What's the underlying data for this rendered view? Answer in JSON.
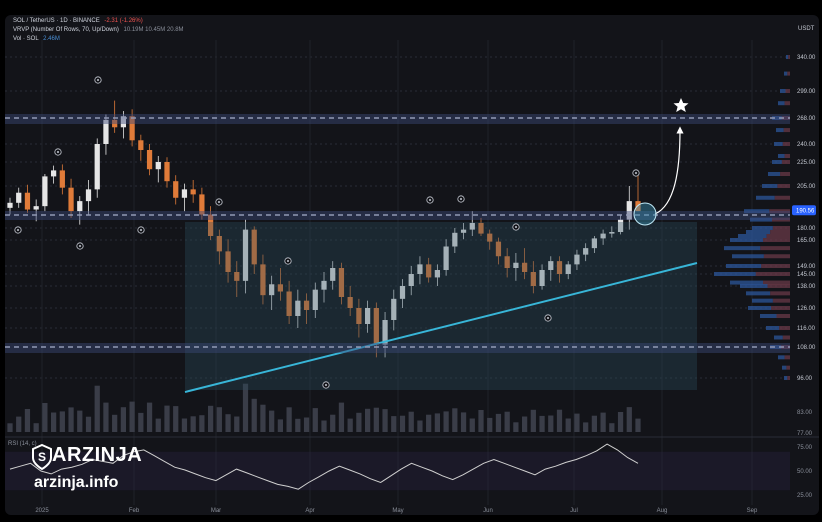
{
  "header": {
    "symbol_line": "SOL / TetherUS · 1D · BINANCE",
    "symbol_change": "-2.31 (-1.26%)",
    "indicator_vrvp": "VRVP (Number Of Rows, 70, Up/Down)",
    "indicator_vrvp_values": "10.19M  10.45M  20.8M",
    "indicator_vol": "Vol · SOL",
    "indicator_vol_value": "2.46M"
  },
  "brand": {
    "name": "ARZINJA",
    "url": "arzinja.info"
  },
  "chart_data": {
    "type": "candlestick",
    "currency": "USDT",
    "y_ticks": [
      340.0,
      299.0,
      268.0,
      240.0,
      225.0,
      205.0,
      180.0,
      165.0,
      149.0,
      145.0,
      138.0,
      126.0,
      116.0,
      108.0,
      96.0
    ],
    "current_price": 190.56,
    "x_ticks": [
      "2025",
      "Feb",
      "Mar",
      "Apr",
      "May",
      "Jun",
      "Jul",
      "Aug",
      "Sep"
    ],
    "rsi": {
      "label": "RSI (14, c)",
      "y_ticks": [
        75.0,
        50.0,
        25.0
      ],
      "values": [
        52,
        55,
        58,
        50,
        47,
        52,
        54,
        57,
        62,
        60,
        58,
        66,
        70,
        72,
        66,
        60,
        54,
        51,
        47,
        43,
        40,
        46,
        52,
        48,
        44,
        40,
        36,
        34,
        31,
        38,
        44,
        50,
        55,
        51,
        47,
        42,
        38,
        45,
        52,
        58,
        54,
        50,
        45,
        41,
        46,
        52,
        58,
        62,
        58,
        54,
        50,
        46,
        52,
        55,
        59,
        62,
        66,
        71,
        78,
        72,
        64,
        58
      ]
    },
    "volume": {
      "label": "Vol",
      "y_ticks": [
        83.0,
        77.0
      ]
    },
    "candles": [
      [
        192,
        198,
        188,
        195
      ],
      [
        195,
        204,
        192,
        201
      ],
      [
        201,
        206,
        189,
        191
      ],
      [
        191,
        197,
        184,
        193
      ],
      [
        193,
        215,
        190,
        213
      ],
      [
        213,
        222,
        207,
        218
      ],
      [
        218,
        223,
        200,
        204
      ],
      [
        204,
        211,
        186,
        190
      ],
      [
        190,
        199,
        182,
        196
      ],
      [
        196,
        210,
        188,
        203
      ],
      [
        203,
        246,
        198,
        240
      ],
      [
        240,
        272,
        231,
        266
      ],
      [
        266,
        288,
        252,
        258
      ],
      [
        258,
        276,
        246,
        270
      ],
      [
        270,
        278,
        238,
        244
      ],
      [
        244,
        250,
        226,
        235
      ],
      [
        235,
        240,
        214,
        219
      ],
      [
        219,
        230,
        208,
        225
      ],
      [
        225,
        229,
        204,
        209
      ],
      [
        209,
        214,
        194,
        198
      ],
      [
        198,
        207,
        190,
        203
      ],
      [
        203,
        210,
        195,
        200
      ],
      [
        200,
        204,
        185,
        188
      ],
      [
        188,
        193,
        165,
        170
      ],
      [
        170,
        178,
        150,
        158
      ],
      [
        158,
        166,
        140,
        146
      ],
      [
        146,
        152,
        132,
        141
      ],
      [
        141,
        185,
        134,
        178
      ],
      [
        178,
        181,
        145,
        150
      ],
      [
        150,
        156,
        128,
        133
      ],
      [
        133,
        144,
        125,
        139
      ],
      [
        139,
        148,
        130,
        135
      ],
      [
        135,
        141,
        118,
        122
      ],
      [
        122,
        136,
        116,
        130
      ],
      [
        130,
        134,
        118,
        125
      ],
      [
        125,
        140,
        121,
        136
      ],
      [
        136,
        146,
        129,
        141
      ],
      [
        141,
        152,
        136,
        148
      ],
      [
        148,
        151,
        128,
        132
      ],
      [
        132,
        138,
        122,
        126
      ],
      [
        126,
        131,
        112,
        118
      ],
      [
        118,
        130,
        114,
        126
      ],
      [
        126,
        129,
        104,
        109
      ],
      [
        109,
        124,
        104,
        120
      ],
      [
        120,
        136,
        115,
        131
      ],
      [
        131,
        142,
        126,
        138
      ],
      [
        138,
        149,
        133,
        145
      ],
      [
        145,
        155,
        139,
        150
      ],
      [
        150,
        154,
        140,
        143
      ],
      [
        143,
        150,
        138,
        147
      ],
      [
        147,
        166,
        144,
        161
      ],
      [
        161,
        180,
        157,
        174
      ],
      [
        174,
        183,
        166,
        178
      ],
      [
        178,
        190,
        170,
        183
      ],
      [
        183,
        186,
        170,
        173
      ],
      [
        173,
        178,
        159,
        164
      ],
      [
        164,
        168,
        150,
        155
      ],
      [
        155,
        160,
        143,
        148
      ],
      [
        148,
        157,
        141,
        151
      ],
      [
        151,
        160,
        142,
        146
      ],
      [
        146,
        152,
        134,
        138
      ],
      [
        138,
        150,
        136,
        147
      ],
      [
        147,
        155,
        141,
        152
      ],
      [
        152,
        155,
        140,
        145
      ],
      [
        145,
        152,
        142,
        150
      ],
      [
        150,
        159,
        147,
        156
      ],
      [
        156,
        163,
        152,
        160
      ],
      [
        160,
        170,
        157,
        167
      ],
      [
        167,
        178,
        162,
        173
      ],
      [
        173,
        181,
        168,
        175
      ],
      [
        175,
        188,
        172,
        185
      ],
      [
        185,
        205,
        178,
        196
      ],
      [
        196,
        214,
        190,
        190
      ]
    ]
  }
}
